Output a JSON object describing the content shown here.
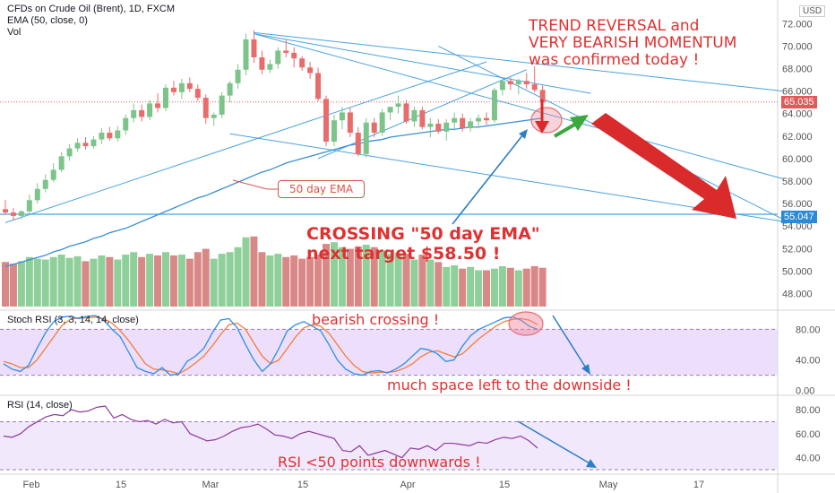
{
  "header": {
    "title": "CFDs on Crude Oil (Brent), 1D, FXCM",
    "indicator": "EMA (50, close, 0)",
    "volume_label": "Vol",
    "currency": "USD"
  },
  "colors": {
    "up": "#7cc48a",
    "down": "#e86c6c",
    "vol_up": "#8fcf9a",
    "vol_down": "#d98888",
    "trendline": "#4aa3df",
    "ema": "#3a8fd8",
    "annotation": "#e03131",
    "arrow_green": "#3aa83a",
    "stoch_k": "#2d8ee6",
    "stoch_d": "#f57c3a",
    "rsi": "#8e3a9e",
    "band": "#e9d7fb"
  },
  "annotations": {
    "trend_line1": "TREND REVERSAL and",
    "trend_line2": "VERY BEARISH MOMENTUM",
    "trend_line3": "was confirmed today !",
    "crossing_line1": "CROSSING \"50 day EMA\"",
    "crossing_line2": "next target $58.50 !",
    "ema_callout": "50 day EMA",
    "stoch_note": "bearish crossing !",
    "stoch_space": "much space left to the downside !",
    "rsi_note": "RSI <50 points downwards !"
  },
  "panes": {
    "stoch_label": "Stoch RSI (3, 3, 14, 14, close)",
    "rsi_label": "RSI (14, close)"
  },
  "price_tags": {
    "current": "65.035",
    "level": "55.047"
  },
  "chart_data": [
    {
      "type": "candlestick",
      "title": "CFDs on Crude Oil (Brent), 1D, FXCM",
      "ylim": [
        47.0,
        73.3
      ],
      "ytick_labels": [
        "48.000",
        "50.000",
        "52.000",
        "54.000",
        "56.000",
        "58.000",
        "60.000",
        "62.000",
        "64.000",
        "66.000",
        "68.000",
        "70.000",
        "72.000"
      ],
      "xtick_labels": [
        "Feb",
        "15",
        "Mar",
        "15",
        "Apr",
        "15",
        "May",
        "17"
      ],
      "candles": [
        [
          55.5,
          56.3,
          55.0,
          55.2
        ],
        [
          55.2,
          55.6,
          54.5,
          54.9
        ],
        [
          54.9,
          55.4,
          54.6,
          55.3
        ],
        [
          55.3,
          56.8,
          55.1,
          56.3
        ],
        [
          56.3,
          57.8,
          56.0,
          57.3
        ],
        [
          57.3,
          58.6,
          57.0,
          58.1
        ],
        [
          58.1,
          59.6,
          57.9,
          59.0
        ],
        [
          59.0,
          60.6,
          58.8,
          60.2
        ],
        [
          60.2,
          61.3,
          59.8,
          60.9
        ],
        [
          60.9,
          61.8,
          60.6,
          61.4
        ],
        [
          61.4,
          61.9,
          60.8,
          61.1
        ],
        [
          61.1,
          62.0,
          60.9,
          61.7
        ],
        [
          61.7,
          62.7,
          61.3,
          62.3
        ],
        [
          62.3,
          62.8,
          61.6,
          61.8
        ],
        [
          61.8,
          62.9,
          61.5,
          62.5
        ],
        [
          62.5,
          63.9,
          62.1,
          63.6
        ],
        [
          63.6,
          64.9,
          63.2,
          64.3
        ],
        [
          64.3,
          64.8,
          63.3,
          63.7
        ],
        [
          63.7,
          65.2,
          63.4,
          64.9
        ],
        [
          64.9,
          65.8,
          64.1,
          64.5
        ],
        [
          64.5,
          66.6,
          64.2,
          66.3
        ],
        [
          66.3,
          66.9,
          65.6,
          65.9
        ],
        [
          65.9,
          67.1,
          65.3,
          66.7
        ],
        [
          66.7,
          67.2,
          65.9,
          66.2
        ],
        [
          66.2,
          66.6,
          65.1,
          65.4
        ],
        [
          65.4,
          65.7,
          63.1,
          63.6
        ],
        [
          63.6,
          64.1,
          62.9,
          63.9
        ],
        [
          63.9,
          65.9,
          63.6,
          65.6
        ],
        [
          65.6,
          66.9,
          65.0,
          66.7
        ],
        [
          66.7,
          68.4,
          66.2,
          67.9
        ],
        [
          67.9,
          71.1,
          67.4,
          70.6
        ],
        [
          70.6,
          71.4,
          68.5,
          69.0
        ],
        [
          69.0,
          69.6,
          67.5,
          67.9
        ],
        [
          67.9,
          68.8,
          67.6,
          68.4
        ],
        [
          68.4,
          69.9,
          68.0,
          69.6
        ],
        [
          69.6,
          70.6,
          69.0,
          69.4
        ],
        [
          69.4,
          69.9,
          68.1,
          68.9
        ],
        [
          68.9,
          69.1,
          67.8,
          68.1
        ],
        [
          68.1,
          68.6,
          67.1,
          67.6
        ],
        [
          67.6,
          68.1,
          65.1,
          65.3
        ],
        [
          65.3,
          65.6,
          61.1,
          61.5
        ],
        [
          61.5,
          63.9,
          61.1,
          63.4
        ],
        [
          63.4,
          64.6,
          62.6,
          64.1
        ],
        [
          64.1,
          64.5,
          61.9,
          62.3
        ],
        [
          62.3,
          62.8,
          60.2,
          60.4
        ],
        [
          60.4,
          63.6,
          60.1,
          63.2
        ],
        [
          63.2,
          63.6,
          61.9,
          62.3
        ],
        [
          62.3,
          64.4,
          62.0,
          64.1
        ],
        [
          64.1,
          64.6,
          63.4,
          64.6
        ],
        [
          64.6,
          65.6,
          64.0,
          64.9
        ],
        [
          64.9,
          65.2,
          63.1,
          63.3
        ],
        [
          63.3,
          64.6,
          62.8,
          64.3
        ],
        [
          64.3,
          64.6,
          62.6,
          62.8
        ],
        [
          62.8,
          63.6,
          61.9,
          63.1
        ],
        [
          63.1,
          63.5,
          62.2,
          62.4
        ],
        [
          62.4,
          63.5,
          61.6,
          63.2
        ],
        [
          63.2,
          64.1,
          62.5,
          63.6
        ],
        [
          63.6,
          64.0,
          62.4,
          62.7
        ],
        [
          62.7,
          63.6,
          62.4,
          63.3
        ],
        [
          63.3,
          63.9,
          62.7,
          63.6
        ],
        [
          63.6,
          64.1,
          63.0,
          63.4
        ],
        [
          63.4,
          66.3,
          63.2,
          66.1
        ],
        [
          66.1,
          67.0,
          65.6,
          66.9
        ],
        [
          66.9,
          67.2,
          66.1,
          66.6
        ],
        [
          66.6,
          67.1,
          65.7,
          66.9
        ],
        [
          66.9,
          67.6,
          66.2,
          66.6
        ],
        [
          66.6,
          68.2,
          65.9,
          66.1
        ],
        [
          66.1,
          66.5,
          65.0,
          65.0
        ]
      ],
      "volumes": [
        0.54,
        0.52,
        0.55,
        0.6,
        0.58,
        0.57,
        0.6,
        0.63,
        0.59,
        0.61,
        0.55,
        0.58,
        0.62,
        0.6,
        0.57,
        0.63,
        0.66,
        0.6,
        0.64,
        0.62,
        0.66,
        0.62,
        0.63,
        0.58,
        0.66,
        0.7,
        0.58,
        0.64,
        0.66,
        0.72,
        0.84,
        0.85,
        0.66,
        0.62,
        0.64,
        0.6,
        0.62,
        0.58,
        0.6,
        0.63,
        0.76,
        0.78,
        0.72,
        0.7,
        0.73,
        0.75,
        0.72,
        0.68,
        0.64,
        0.65,
        0.64,
        0.57,
        0.63,
        0.57,
        0.54,
        0.48,
        0.5,
        0.46,
        0.48,
        0.44,
        0.44,
        0.46,
        0.49,
        0.47,
        0.44,
        0.46,
        0.49,
        0.47
      ],
      "ema50": [
        50.4,
        50.6,
        50.8,
        51.0,
        51.2,
        51.4,
        51.7,
        51.9,
        52.2,
        52.4,
        52.6,
        52.9,
        53.1,
        53.4,
        53.6,
        53.8,
        54.1,
        54.4,
        54.7,
        55.0,
        55.3,
        55.6,
        55.9,
        56.2,
        56.5,
        56.7,
        57.0,
        57.3,
        57.6,
        57.9,
        58.2,
        58.5,
        58.8,
        59.0,
        59.3,
        59.6,
        59.8,
        60.0,
        60.2,
        60.4,
        60.6,
        60.8,
        61.0,
        61.2,
        61.3,
        61.5,
        61.6,
        61.7,
        61.9,
        62.0,
        62.1,
        62.2,
        62.3,
        62.4,
        62.5,
        62.6,
        62.6,
        62.7,
        62.8,
        62.8,
        62.9,
        63.0,
        63.1,
        63.2,
        63.3,
        63.4,
        63.5,
        63.6
      ]
    },
    {
      "type": "line",
      "title": "Stoch RSI (3, 3, 14, 14, close)",
      "ylim": [
        -5,
        105
      ],
      "ytick_labels": [
        "0.00",
        "40.00",
        "80.00"
      ],
      "series": [
        {
          "name": "K",
          "values": [
            35,
            28,
            25,
            33,
            55,
            75,
            90,
            96,
            97,
            94,
            97,
            98,
            92,
            80,
            70,
            50,
            30,
            25,
            22,
            30,
            20,
            22,
            38,
            45,
            55,
            75,
            92,
            94,
            82,
            60,
            40,
            25,
            35,
            55,
            78,
            86,
            90,
            84,
            78,
            60,
            40,
            28,
            22,
            20,
            25,
            26,
            23,
            28,
            35,
            45,
            55,
            53,
            48,
            38,
            40,
            58,
            72,
            80,
            85,
            90,
            95,
            96,
            92,
            84,
            80
          ]
        },
        {
          "name": "D",
          "values": [
            38,
            35,
            30,
            30,
            40,
            55,
            70,
            85,
            93,
            95,
            95,
            96,
            94,
            88,
            78,
            65,
            50,
            35,
            28,
            27,
            25,
            22,
            28,
            36,
            45,
            58,
            73,
            86,
            88,
            80,
            62,
            45,
            35,
            40,
            55,
            70,
            82,
            86,
            84,
            75,
            60,
            45,
            33,
            25,
            23,
            24,
            24,
            25,
            29,
            35,
            44,
            50,
            52,
            48,
            44,
            48,
            58,
            68,
            76,
            84,
            90,
            93,
            94,
            92,
            86
          ]
        }
      ]
    },
    {
      "type": "line",
      "title": "RSI (14, close)",
      "ylim": [
        27,
        92
      ],
      "ytick_labels": [
        "40.00",
        "60.00",
        "80.00"
      ],
      "series": [
        {
          "name": "RSI",
          "values": [
            58,
            57,
            60,
            66,
            70,
            74,
            76,
            75,
            80,
            78,
            79,
            82,
            83,
            73,
            76,
            72,
            70,
            71,
            68,
            72,
            69,
            70,
            60,
            57,
            54,
            55,
            58,
            62,
            65,
            66,
            68,
            64,
            59,
            58,
            56,
            60,
            62,
            60,
            58,
            56,
            46,
            45,
            50,
            42,
            44,
            46,
            43,
            40,
            48,
            47,
            50,
            46,
            52,
            52,
            51,
            50,
            53,
            52,
            55,
            57,
            56,
            58,
            54,
            48
          ]
        }
      ]
    }
  ]
}
